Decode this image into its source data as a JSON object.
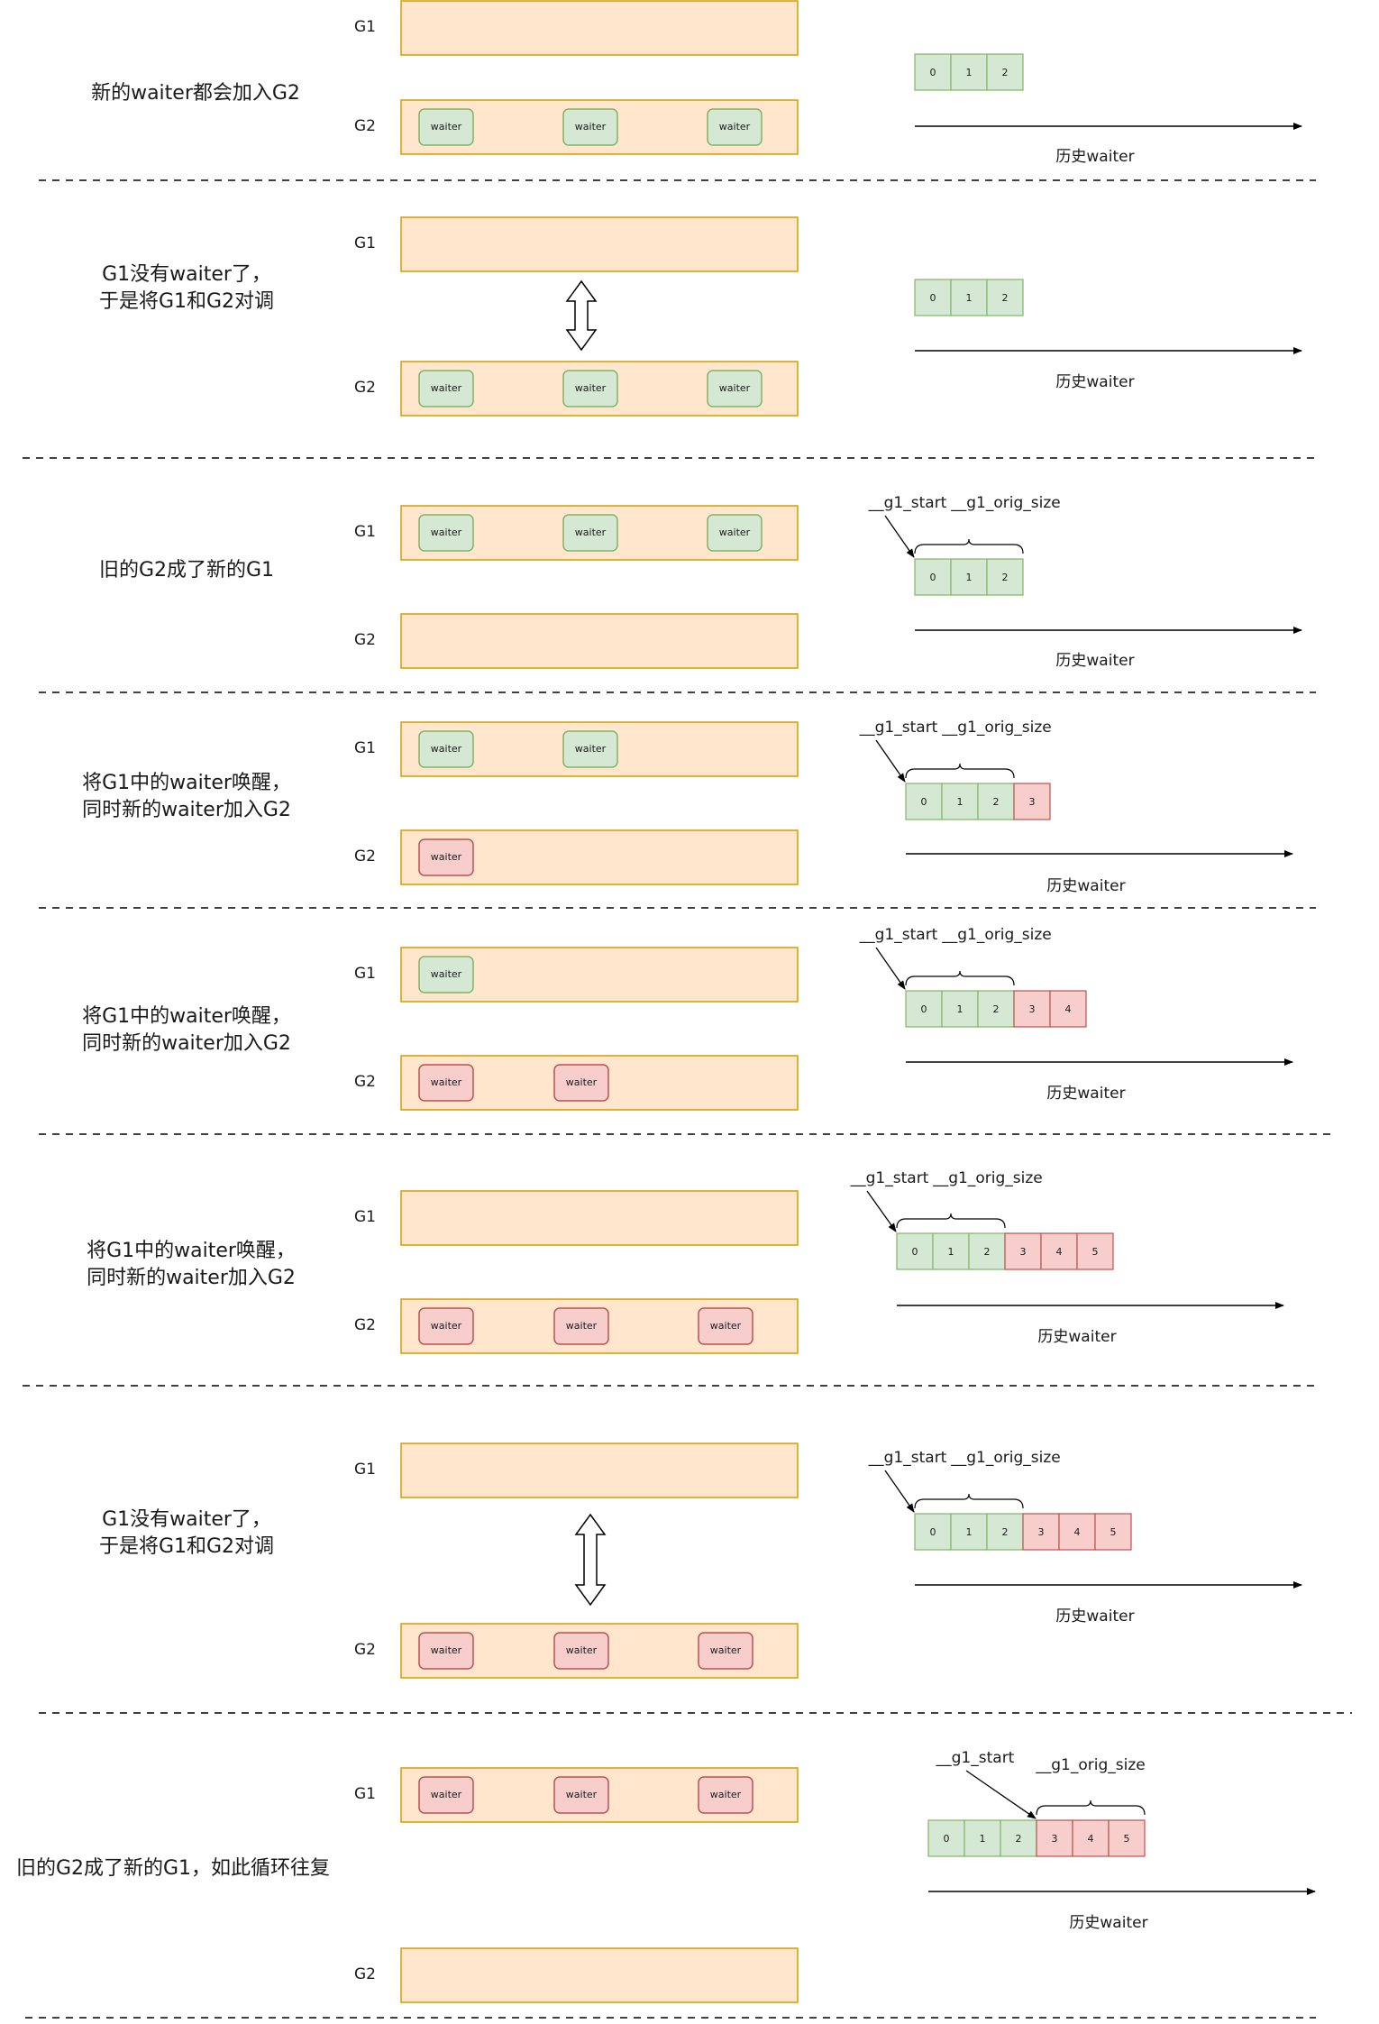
{
  "labels": {
    "g1": "G1",
    "g2": "G2",
    "waiter": "waiter",
    "history": "历史waiter",
    "g1_start": "__g1_start",
    "g1_orig_size": "__g1_orig_size"
  },
  "colors": {
    "group_fill": "#ffe6cc",
    "group_stroke": "#d79b00",
    "green_fill": "#d5e8d4",
    "green_stroke": "#82b366",
    "red_fill": "#f8cecc",
    "red_stroke": "#b85450",
    "line": "#000000"
  },
  "panels": [
    {
      "caption": [
        "新的waiter都会加入G2"
      ],
      "g1_waiters": [],
      "g2_waiters": [
        "green",
        "green",
        "green"
      ],
      "swap": false,
      "history": [
        {
          "n": "0",
          "color": "green"
        },
        {
          "n": "1",
          "color": "green"
        },
        {
          "n": "2",
          "color": "green"
        }
      ],
      "pointers": false
    },
    {
      "caption": [
        "G1没有waiter了，",
        "于是将G1和G2对调"
      ],
      "g1_waiters": [],
      "g2_waiters": [
        "green",
        "green",
        "green"
      ],
      "swap": true,
      "history": [
        {
          "n": "0",
          "color": "green"
        },
        {
          "n": "1",
          "color": "green"
        },
        {
          "n": "2",
          "color": "green"
        }
      ],
      "pointers": false
    },
    {
      "caption": [
        "旧的G2成了新的G1"
      ],
      "g1_waiters": [
        "green",
        "green",
        "green"
      ],
      "g2_waiters": [],
      "swap": false,
      "history": [
        {
          "n": "0",
          "color": "green"
        },
        {
          "n": "1",
          "color": "green"
        },
        {
          "n": "2",
          "color": "green"
        }
      ],
      "pointers": true
    },
    {
      "caption": [
        "将G1中的waiter唤醒，",
        "同时新的waiter加入G2"
      ],
      "g1_waiters": [
        "green",
        "green"
      ],
      "g2_waiters": [
        "red"
      ],
      "swap": false,
      "history": [
        {
          "n": "0",
          "color": "green"
        },
        {
          "n": "1",
          "color": "green"
        },
        {
          "n": "2",
          "color": "green"
        },
        {
          "n": "3",
          "color": "red"
        }
      ],
      "pointers": true
    },
    {
      "caption": [
        "将G1中的waiter唤醒，",
        "同时新的waiter加入G2"
      ],
      "g1_waiters": [
        "green"
      ],
      "g2_waiters": [
        "red",
        "red"
      ],
      "swap": false,
      "history": [
        {
          "n": "0",
          "color": "green"
        },
        {
          "n": "1",
          "color": "green"
        },
        {
          "n": "2",
          "color": "green"
        },
        {
          "n": "3",
          "color": "red"
        },
        {
          "n": "4",
          "color": "red"
        }
      ],
      "pointers": true
    },
    {
      "caption": [
        "将G1中的waiter唤醒，",
        "同时新的waiter加入G2"
      ],
      "g1_waiters": [],
      "g2_waiters": [
        "red",
        "red",
        "red"
      ],
      "swap": false,
      "history": [
        {
          "n": "0",
          "color": "green"
        },
        {
          "n": "1",
          "color": "green"
        },
        {
          "n": "2",
          "color": "green"
        },
        {
          "n": "3",
          "color": "red"
        },
        {
          "n": "4",
          "color": "red"
        },
        {
          "n": "5",
          "color": "red"
        }
      ],
      "pointers": true
    },
    {
      "caption": [
        "G1没有waiter了，",
        "于是将G1和G2对调"
      ],
      "g1_waiters": [],
      "g2_waiters": [
        "red",
        "red",
        "red"
      ],
      "swap": true,
      "history": [
        {
          "n": "0",
          "color": "green"
        },
        {
          "n": "1",
          "color": "green"
        },
        {
          "n": "2",
          "color": "green"
        },
        {
          "n": "3",
          "color": "red"
        },
        {
          "n": "4",
          "color": "red"
        },
        {
          "n": "5",
          "color": "red"
        }
      ],
      "pointers": true
    },
    {
      "caption": [
        "旧的G2成了新的G1，如此循环往复"
      ],
      "g1_waiters": [
        "red",
        "red",
        "red"
      ],
      "g2_waiters": [],
      "swap": false,
      "history": [
        {
          "n": "0",
          "color": "green"
        },
        {
          "n": "1",
          "color": "green"
        },
        {
          "n": "2",
          "color": "green"
        },
        {
          "n": "3",
          "color": "red"
        },
        {
          "n": "4",
          "color": "red"
        },
        {
          "n": "5",
          "color": "red"
        }
      ],
      "pointers": true
    }
  ]
}
